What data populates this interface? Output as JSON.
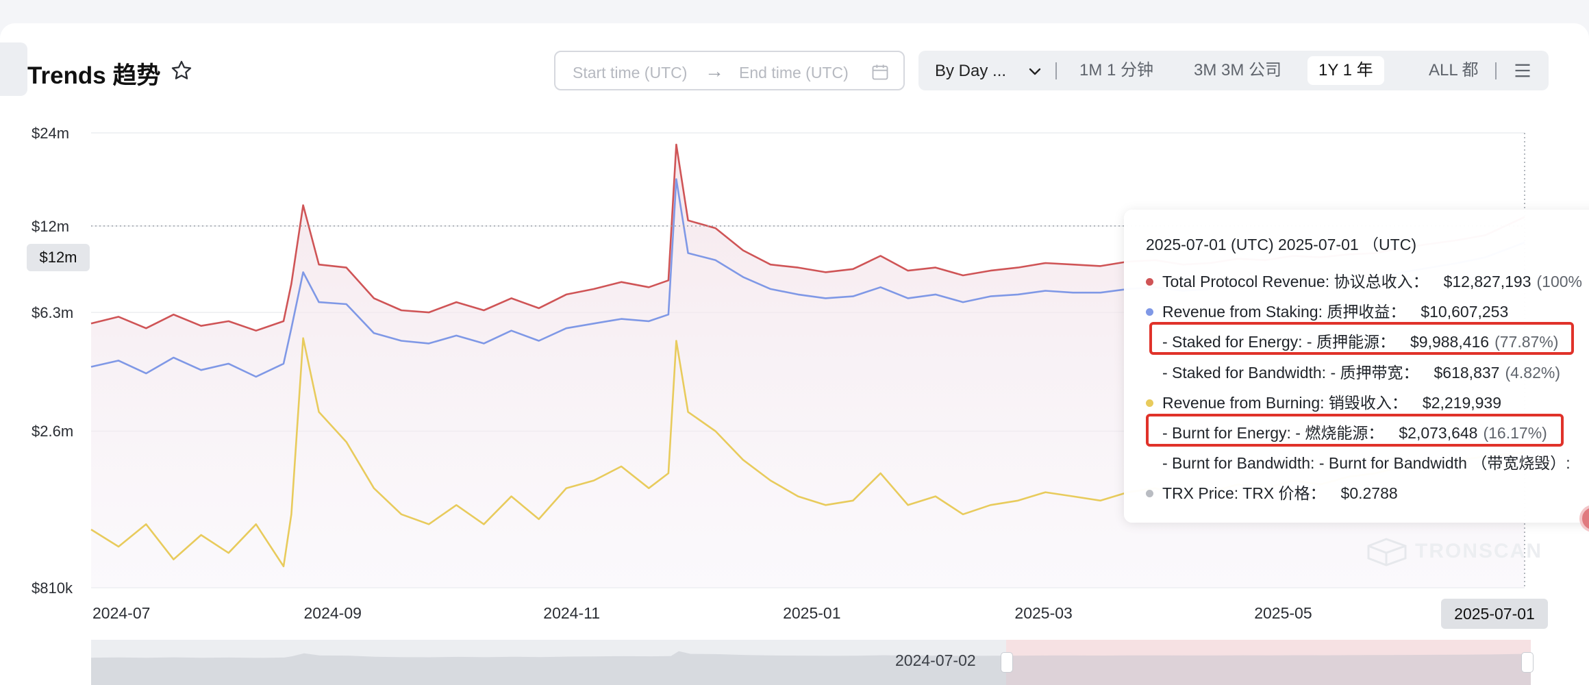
{
  "header": {
    "title": "Trends 趋势"
  },
  "date_range": {
    "start_placeholder": "Start time (UTC)",
    "arrow": "→",
    "end_placeholder": "End time (UTC)"
  },
  "toolbar": {
    "granularity": "By Day ...",
    "ranges": [
      {
        "label": "1M 1 分钟",
        "active": false
      },
      {
        "label": "3M 3M 公司",
        "active": false
      },
      {
        "label": "1Y 1 年",
        "active": true
      },
      {
        "label": "ALL 都",
        "active": false
      }
    ]
  },
  "crosshair": {
    "y_label": "$12m",
    "x_label": "2025-07-01"
  },
  "navigator": {
    "label": "2024-07-02"
  },
  "watermark": "TRONSCAN",
  "tooltip": {
    "date": "2025-07-01 (UTC)  2025-07-01 （UTC)",
    "rows": [
      {
        "dot": "#cf5456",
        "label": "Total Protocol Revenue:  协议总收入：",
        "value": "$12,827,193",
        "pct": "(100%",
        "indent": false
      },
      {
        "dot": "#7f98e6",
        "label": "Revenue from Staking:  质押收益：",
        "value": "$10,607,253",
        "pct": "",
        "indent": false
      },
      {
        "dot": "",
        "label": "- Staked for Energy:  - 质押能源：",
        "value": "$9,988,416",
        "pct": "(77.87%)",
        "indent": true
      },
      {
        "dot": "",
        "label": "- Staked for Bandwidth:  - 质押带宽：",
        "value": "$618,837",
        "pct": "(4.82%)",
        "indent": true
      },
      {
        "dot": "#e8cb5c",
        "label": "Revenue from Burning:  销毁收入：",
        "value": "$2,219,939",
        "pct": "",
        "indent": false
      },
      {
        "dot": "",
        "label": "- Burnt for Energy:  - 燃烧能源：",
        "value": "$2,073,648",
        "pct": "(16.17%)",
        "indent": true
      },
      {
        "dot": "",
        "label": "- Burnt for Bandwidth:  - Burnt for Bandwidth （带宽烧毁）:",
        "value": "",
        "pct": "",
        "indent": true
      },
      {
        "dot": "#b9bcc2",
        "label": "TRX Price:  TRX 价格：",
        "value": "$0.2788",
        "pct": "",
        "indent": false
      }
    ]
  },
  "colors": {
    "total": "#cf5456",
    "staking": "#7f98e6",
    "burning": "#e8cb5c",
    "highlight": "#e0322a"
  },
  "chart_data": {
    "type": "line",
    "y_scale": "log",
    "ylim": [
      810000,
      24000000
    ],
    "xlim": [
      "2024-07-01",
      "2025-07-01"
    ],
    "y_ticks": [
      {
        "value": 810000,
        "label": "$810k"
      },
      {
        "value": 2600000,
        "label": "$2.6m"
      },
      {
        "value": 6300000,
        "label": "$6.3m"
      },
      {
        "value": 12000000,
        "label": "$12m"
      },
      {
        "value": 24000000,
        "label": "$24m"
      }
    ],
    "x_ticks": [
      {
        "value": "2024-07-01",
        "label": "2024-07"
      },
      {
        "value": "2024-09-01",
        "label": "2024-09"
      },
      {
        "value": "2024-11-01",
        "label": "2024-11"
      },
      {
        "value": "2025-01-01",
        "label": "2025-01"
      },
      {
        "value": "2025-03-01",
        "label": "2025-03"
      },
      {
        "value": "2025-05-01",
        "label": "2025-05"
      }
    ],
    "grid": true,
    "series": [
      {
        "name": "Total Protocol Revenue",
        "key": "total",
        "points": [
          [
            "2024-07-01",
            5800000
          ],
          [
            "2024-07-08",
            6100000
          ],
          [
            "2024-07-15",
            5600000
          ],
          [
            "2024-07-22",
            6200000
          ],
          [
            "2024-07-29",
            5700000
          ],
          [
            "2024-08-05",
            5900000
          ],
          [
            "2024-08-12",
            5500000
          ],
          [
            "2024-08-19",
            5900000
          ],
          [
            "2024-08-21",
            7800000
          ],
          [
            "2024-08-24",
            14000000
          ],
          [
            "2024-08-28",
            9000000
          ],
          [
            "2024-09-04",
            8800000
          ],
          [
            "2024-09-11",
            7000000
          ],
          [
            "2024-09-18",
            6400000
          ],
          [
            "2024-09-25",
            6300000
          ],
          [
            "2024-10-02",
            6800000
          ],
          [
            "2024-10-09",
            6400000
          ],
          [
            "2024-10-16",
            7000000
          ],
          [
            "2024-10-23",
            6500000
          ],
          [
            "2024-10-30",
            7200000
          ],
          [
            "2024-11-06",
            7500000
          ],
          [
            "2024-11-13",
            7900000
          ],
          [
            "2024-11-20",
            7600000
          ],
          [
            "2024-11-25",
            8000000
          ],
          [
            "2024-11-27",
            22000000
          ],
          [
            "2024-11-30",
            12500000
          ],
          [
            "2024-12-07",
            11800000
          ],
          [
            "2024-12-14",
            10000000
          ],
          [
            "2024-12-21",
            9000000
          ],
          [
            "2024-12-28",
            8800000
          ],
          [
            "2025-01-04",
            8500000
          ],
          [
            "2025-01-11",
            8700000
          ],
          [
            "2025-01-18",
            9600000
          ],
          [
            "2025-01-25",
            8600000
          ],
          [
            "2025-02-01",
            8800000
          ],
          [
            "2025-02-08",
            8300000
          ],
          [
            "2025-02-15",
            8600000
          ],
          [
            "2025-02-22",
            8800000
          ],
          [
            "2025-03-01",
            9100000
          ],
          [
            "2025-03-08",
            9000000
          ],
          [
            "2025-03-15",
            8900000
          ],
          [
            "2025-03-22",
            9200000
          ],
          [
            "2025-03-29",
            9300000
          ],
          [
            "2025-04-05",
            9000000
          ],
          [
            "2025-04-12",
            9100000
          ],
          [
            "2025-04-19",
            9400000
          ],
          [
            "2025-04-26",
            9300000
          ],
          [
            "2025-05-03",
            9600000
          ],
          [
            "2025-05-10",
            9500000
          ],
          [
            "2025-05-17",
            9700000
          ],
          [
            "2025-05-24",
            9800000
          ],
          [
            "2025-05-31",
            10200000
          ],
          [
            "2025-06-07",
            10500000
          ],
          [
            "2025-06-14",
            10800000
          ],
          [
            "2025-06-21",
            11200000
          ],
          [
            "2025-07-01",
            12827193
          ]
        ]
      },
      {
        "name": "Revenue from Staking",
        "key": "staking",
        "points": [
          [
            "2024-07-01",
            4200000
          ],
          [
            "2024-07-08",
            4400000
          ],
          [
            "2024-07-15",
            4000000
          ],
          [
            "2024-07-22",
            4500000
          ],
          [
            "2024-07-29",
            4100000
          ],
          [
            "2024-08-05",
            4300000
          ],
          [
            "2024-08-12",
            3900000
          ],
          [
            "2024-08-19",
            4300000
          ],
          [
            "2024-08-21",
            5600000
          ],
          [
            "2024-08-24",
            8500000
          ],
          [
            "2024-08-28",
            6800000
          ],
          [
            "2024-09-04",
            6700000
          ],
          [
            "2024-09-11",
            5400000
          ],
          [
            "2024-09-18",
            5100000
          ],
          [
            "2024-09-25",
            5000000
          ],
          [
            "2024-10-02",
            5300000
          ],
          [
            "2024-10-09",
            5000000
          ],
          [
            "2024-10-16",
            5500000
          ],
          [
            "2024-10-23",
            5100000
          ],
          [
            "2024-10-30",
            5600000
          ],
          [
            "2024-11-06",
            5800000
          ],
          [
            "2024-11-13",
            6000000
          ],
          [
            "2024-11-20",
            5900000
          ],
          [
            "2024-11-25",
            6200000
          ],
          [
            "2024-11-27",
            17000000
          ],
          [
            "2024-11-30",
            9800000
          ],
          [
            "2024-12-07",
            9300000
          ],
          [
            "2024-12-14",
            8200000
          ],
          [
            "2024-12-21",
            7500000
          ],
          [
            "2024-12-28",
            7200000
          ],
          [
            "2025-01-04",
            7000000
          ],
          [
            "2025-01-11",
            7100000
          ],
          [
            "2025-01-18",
            7600000
          ],
          [
            "2025-01-25",
            7000000
          ],
          [
            "2025-02-01",
            7200000
          ],
          [
            "2025-02-08",
            6800000
          ],
          [
            "2025-02-15",
            7100000
          ],
          [
            "2025-02-22",
            7200000
          ],
          [
            "2025-03-01",
            7400000
          ],
          [
            "2025-03-08",
            7300000
          ],
          [
            "2025-03-15",
            7300000
          ],
          [
            "2025-03-22",
            7500000
          ],
          [
            "2025-03-29",
            7600000
          ],
          [
            "2025-04-05",
            7400000
          ],
          [
            "2025-04-12",
            7500000
          ],
          [
            "2025-04-19",
            7700000
          ],
          [
            "2025-04-26",
            7600000
          ],
          [
            "2025-05-03",
            7900000
          ],
          [
            "2025-05-10",
            7800000
          ],
          [
            "2025-05-17",
            8000000
          ],
          [
            "2025-05-24",
            8100000
          ],
          [
            "2025-05-31",
            8500000
          ],
          [
            "2025-06-07",
            8800000
          ],
          [
            "2025-06-14",
            9100000
          ],
          [
            "2025-06-21",
            9500000
          ],
          [
            "2025-07-01",
            10607253
          ]
        ]
      },
      {
        "name": "Revenue from Burning",
        "key": "burning",
        "points": [
          [
            "2024-07-01",
            1250000
          ],
          [
            "2024-07-08",
            1100000
          ],
          [
            "2024-07-15",
            1300000
          ],
          [
            "2024-07-22",
            1000000
          ],
          [
            "2024-07-29",
            1200000
          ],
          [
            "2024-08-05",
            1050000
          ],
          [
            "2024-08-12",
            1300000
          ],
          [
            "2024-08-19",
            950000
          ],
          [
            "2024-08-21",
            1400000
          ],
          [
            "2024-08-24",
            5200000
          ],
          [
            "2024-08-28",
            3000000
          ],
          [
            "2024-09-04",
            2400000
          ],
          [
            "2024-09-11",
            1700000
          ],
          [
            "2024-09-18",
            1400000
          ],
          [
            "2024-09-25",
            1300000
          ],
          [
            "2024-10-02",
            1500000
          ],
          [
            "2024-10-09",
            1300000
          ],
          [
            "2024-10-16",
            1600000
          ],
          [
            "2024-10-23",
            1350000
          ],
          [
            "2024-10-30",
            1700000
          ],
          [
            "2024-11-06",
            1800000
          ],
          [
            "2024-11-13",
            2000000
          ],
          [
            "2024-11-20",
            1700000
          ],
          [
            "2024-11-25",
            1900000
          ],
          [
            "2024-11-27",
            5100000
          ],
          [
            "2024-11-30",
            3000000
          ],
          [
            "2024-12-07",
            2600000
          ],
          [
            "2024-12-14",
            2100000
          ],
          [
            "2024-12-21",
            1800000
          ],
          [
            "2024-12-28",
            1600000
          ],
          [
            "2025-01-04",
            1500000
          ],
          [
            "2025-01-11",
            1550000
          ],
          [
            "2025-01-18",
            1900000
          ],
          [
            "2025-01-25",
            1500000
          ],
          [
            "2025-02-01",
            1600000
          ],
          [
            "2025-02-08",
            1400000
          ],
          [
            "2025-02-15",
            1500000
          ],
          [
            "2025-02-22",
            1550000
          ],
          [
            "2025-03-01",
            1650000
          ],
          [
            "2025-03-08",
            1600000
          ],
          [
            "2025-03-15",
            1550000
          ],
          [
            "2025-03-22",
            1650000
          ],
          [
            "2025-03-29",
            1700000
          ],
          [
            "2025-04-05",
            1600000
          ],
          [
            "2025-04-12",
            1650000
          ],
          [
            "2025-04-19",
            1750000
          ],
          [
            "2025-04-26",
            1700000
          ],
          [
            "2025-05-03",
            1800000
          ],
          [
            "2025-05-10",
            1750000
          ],
          [
            "2025-05-17",
            1850000
          ],
          [
            "2025-05-24",
            1900000
          ],
          [
            "2025-05-31",
            2000000
          ],
          [
            "2025-06-07",
            2050000
          ],
          [
            "2025-06-14",
            2100000
          ],
          [
            "2025-06-21",
            2150000
          ],
          [
            "2025-07-01",
            2219939
          ]
        ]
      }
    ]
  }
}
